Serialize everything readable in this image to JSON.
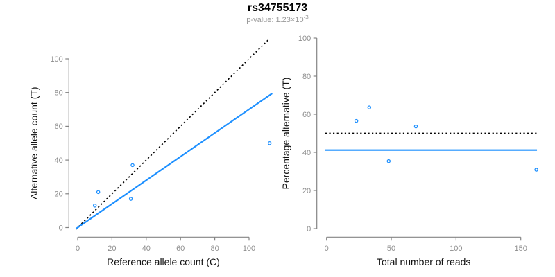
{
  "figure": {
    "title": "rs34755173",
    "subtitle_prefix": "p-value: 1.23×10",
    "subtitle_exponent": "-3"
  },
  "colors": {
    "accent_blue": "#1E90FF",
    "dotted_black": "#000000",
    "axis_gray": "#848484",
    "tick_label_gray": "#8e8e8e",
    "axis_title_dark": "#111111",
    "subtitle_gray": "#999999"
  },
  "chart_data": [
    {
      "type": "scatter",
      "name": "allele-counts-plot",
      "xlabel": "Reference allele count (C)",
      "ylabel": "Alternative allele count (T)",
      "x": [
        10,
        12,
        31,
        32,
        112
      ],
      "y": [
        13,
        21,
        17,
        37,
        50
      ],
      "xticks": [
        0,
        20,
        40,
        60,
        80,
        100
      ],
      "yticks": [
        0,
        20,
        40,
        60,
        80,
        100
      ],
      "xlim": [
        -1,
        113.5
      ],
      "ylim": [
        -1.3,
        111.5
      ],
      "grid": false,
      "lines": [
        {
          "name": "expected-50pct-line",
          "style": "dotted",
          "color": "#000000",
          "slope": 1,
          "intercept": 0
        },
        {
          "name": "fitted-proportion-line",
          "style": "solid",
          "color": "#1E90FF",
          "slope": 0.7004,
          "intercept": 0
        }
      ]
    },
    {
      "type": "scatter",
      "name": "percentage-vs-reads-plot",
      "xlabel": "Total number of reads",
      "ylabel": "Percentage alternative (T)",
      "x": [
        23,
        33,
        48,
        69,
        162
      ],
      "y": [
        56.5,
        63.6,
        35.4,
        53.6,
        30.9
      ],
      "xticks": [
        0,
        50,
        100,
        150
      ],
      "yticks": [
        0,
        20,
        40,
        60,
        80,
        100
      ],
      "xlim": [
        -1,
        162.5
      ],
      "ylim": [
        -2,
        102
      ],
      "grid": false,
      "lines": [
        {
          "name": "expected-50pct-line",
          "style": "dotted",
          "color": "#000000",
          "hline": 50
        },
        {
          "name": "fitted-percentage-line",
          "style": "solid",
          "color": "#1E90FF",
          "hline": 41.2
        }
      ]
    }
  ]
}
